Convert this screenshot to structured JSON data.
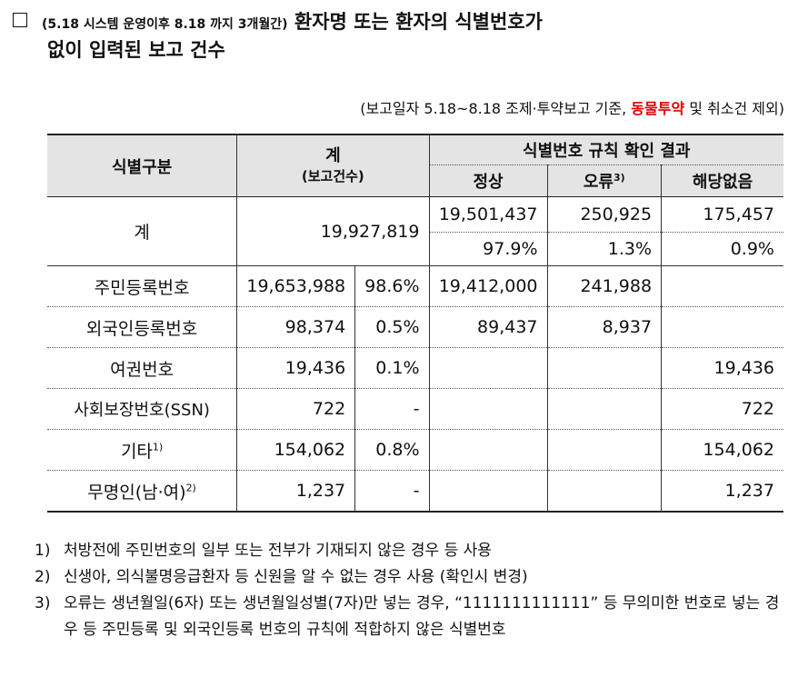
{
  "title": {
    "prefix": "(5.18 시스템 운영이후 8.18 까지 3개월간)",
    "line1_rest": " 환자명 또는 환자의 식별번호가",
    "line2": "없이 입력된 보고 건수"
  },
  "top_note": {
    "before": "(보고일자 5.18~8.18 조제·투약보고 기준, ",
    "highlight": "동물투약",
    "after": " 및 취소건 제외)"
  },
  "table": {
    "headers": {
      "category": "식별구분",
      "total": "계",
      "total_sub": "(보고건수)",
      "result_group": "식별번호 규칙 확인 결과",
      "normal": "정상",
      "error": "오류",
      "error_sup": "3)",
      "none": "해당없음"
    },
    "total_row": {
      "label": "계",
      "count": "19,927,819",
      "normal": "19,501,437",
      "error": "250,925",
      "none": "175,457",
      "normal_pct": "97.9%",
      "error_pct": "1.3%",
      "none_pct": "0.9%"
    },
    "rows": [
      {
        "label": "주민등록번호",
        "sup": "",
        "count": "19,653,988",
        "pct": "98.6%",
        "normal": "19,412,000",
        "error": "241,988",
        "none": ""
      },
      {
        "label": "외국인등록번호",
        "sup": "",
        "count": "98,374",
        "pct": "0.5%",
        "normal": "89,437",
        "error": "8,937",
        "none": ""
      },
      {
        "label": "여권번호",
        "sup": "",
        "count": "19,436",
        "pct": "0.1%",
        "normal": "",
        "error": "",
        "none": "19,436"
      },
      {
        "label": "사회보장번호(SSN)",
        "sup": "",
        "count": "722",
        "pct": "-",
        "normal": "",
        "error": "",
        "none": "722"
      },
      {
        "label": "기타",
        "sup": "1)",
        "count": "154,062",
        "pct": "0.8%",
        "normal": "",
        "error": "",
        "none": "154,062"
      },
      {
        "label": "무명인(남·여)",
        "sup": "2)",
        "count": "1,237",
        "pct": "-",
        "normal": "",
        "error": "",
        "none": "1,237"
      }
    ]
  },
  "footnotes": [
    {
      "num": "1)",
      "text": "처방전에 주민번호의 일부 또는 전부가 기재되지 않은 경우 등 사용"
    },
    {
      "num": "2)",
      "text": "신생아, 의식불명응급환자 등 신원을 알 수 없는 경우 사용 (확인시 변경)"
    },
    {
      "num": "3)",
      "text": "오류는 생년월일(6자) 또는 생년월일성별(7자)만 넣는 경우, “1111111111111” 등 무의미한 번호로 넣는 경우 등 주민등록 및 외국인등록 번호의 규칙에 적합하지 않은 식별번호"
    }
  ]
}
